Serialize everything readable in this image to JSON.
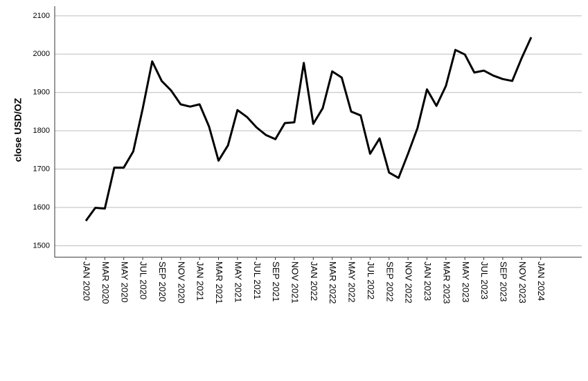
{
  "chart_data": {
    "type": "line",
    "y_label": "close  USD/OZ",
    "categories": [
      "JAN 2020",
      null,
      "MAR 2020",
      null,
      "MAY 2020",
      null,
      "JUL 2020",
      null,
      "SEP 2020",
      null,
      "NOV 2020",
      null,
      "JAN 2021",
      null,
      "MAR 2021",
      null,
      "MAY 2021",
      null,
      "JUL 2021",
      null,
      "SEP 2021",
      null,
      "NOV 2021",
      null,
      "JAN 2022",
      null,
      "MAR 2022",
      null,
      "MAY 2022",
      null,
      "JUL 2022",
      null,
      "SEP 2022",
      null,
      "NOV 2022",
      null,
      "JAN 2023",
      null,
      "MAR 2023",
      null,
      "MAY 2023",
      null,
      "JUL 2023",
      null,
      "SEP 2023",
      null,
      "NOV 2023",
      null,
      "JAN 2024"
    ],
    "series": [
      {
        "color": "#000000",
        "values": [
          1565,
          1599,
          1597,
          1704,
          1704,
          1746,
          1858,
          1981,
          1930,
          1905,
          1869,
          1863,
          1869,
          1811,
          1722,
          1762,
          1854,
          1836,
          1809,
          1789,
          1778,
          1820,
          1822,
          1977,
          1818,
          1859,
          1955,
          1939,
          1850,
          1840,
          1740,
          1780,
          1691,
          1677,
          1740,
          1807,
          1908,
          1865,
          1917,
          2011,
          1999,
          1952,
          1957,
          1944,
          1935,
          1930,
          1990,
          2044,
          null
        ]
      }
    ],
    "ylim": [
      1470,
      2125
    ],
    "yticks": [
      1500,
      1600,
      1700,
      1800,
      1900,
      2000,
      2100
    ],
    "grid": true
  }
}
